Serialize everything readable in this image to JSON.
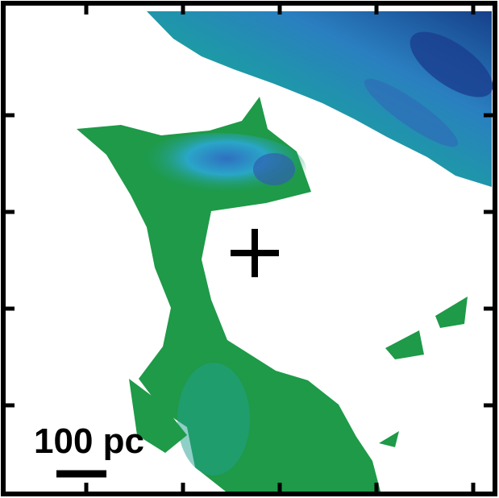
{
  "scale_bar": {
    "label": "100 pc"
  }
}
